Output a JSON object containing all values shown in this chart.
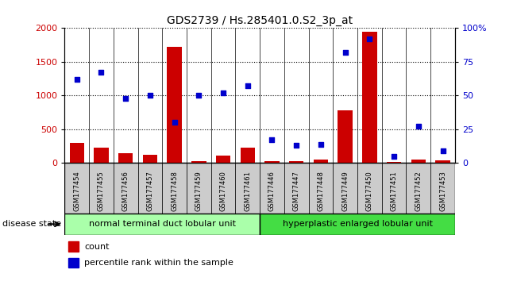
{
  "title": "GDS2739 / Hs.285401.0.S2_3p_at",
  "samples": [
    "GSM177454",
    "GSM177455",
    "GSM177456",
    "GSM177457",
    "GSM177458",
    "GSM177459",
    "GSM177460",
    "GSM177461",
    "GSM177446",
    "GSM177447",
    "GSM177448",
    "GSM177449",
    "GSM177450",
    "GSM177451",
    "GSM177452",
    "GSM177453"
  ],
  "counts": [
    300,
    230,
    140,
    120,
    1720,
    30,
    110,
    230,
    30,
    30,
    50,
    780,
    1940,
    10,
    50,
    40
  ],
  "percentiles": [
    62,
    67,
    48,
    50,
    30,
    50,
    52,
    57,
    17,
    13,
    14,
    82,
    92,
    5,
    27,
    9
  ],
  "group1_label": "normal terminal duct lobular unit",
  "group2_label": "hyperplastic enlarged lobular unit",
  "group1_color": "#AAFFAA",
  "group2_color": "#44DD44",
  "bar_color": "#CC0000",
  "dot_color": "#0000CC",
  "ylim_left": [
    0,
    2000
  ],
  "ylim_right": [
    0,
    100
  ],
  "yticks_left": [
    0,
    500,
    1000,
    1500,
    2000
  ],
  "yticks_right": [
    0,
    25,
    50,
    75,
    100
  ],
  "disease_state_label": "disease state",
  "legend_count": "count",
  "legend_percentile": "percentile rank within the sample",
  "xlabel_color": "#333333",
  "tick_bg_color": "#CCCCCC"
}
